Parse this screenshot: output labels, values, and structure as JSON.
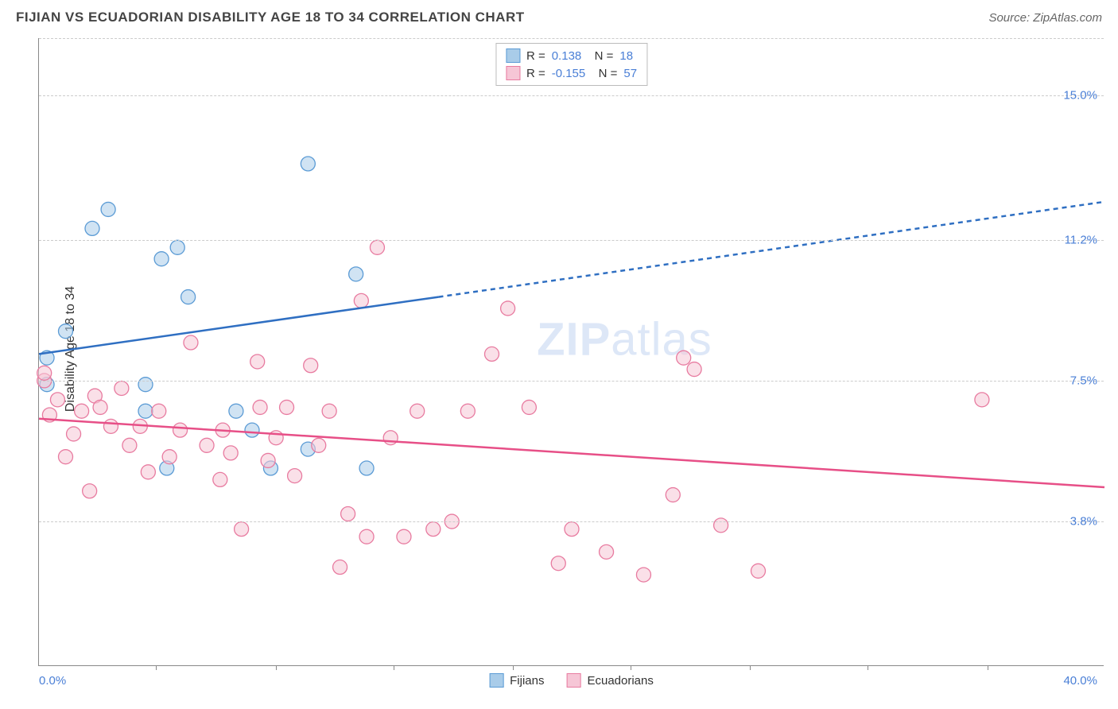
{
  "header": {
    "title": "FIJIAN VS ECUADORIAN DISABILITY AGE 18 TO 34 CORRELATION CHART",
    "source": "Source: ZipAtlas.com"
  },
  "watermark": {
    "bold": "ZIP",
    "rest": "atlas"
  },
  "chart": {
    "type": "scatter",
    "ylabel": "Disability Age 18 to 34",
    "xlim": [
      0,
      40
    ],
    "ylim": [
      0,
      16.5
    ],
    "background_color": "#ffffff",
    "grid_color": "#cccccc",
    "ytick_values": [
      3.8,
      7.5,
      11.2,
      15.0
    ],
    "ytick_labels": [
      "3.8%",
      "7.5%",
      "11.2%",
      "15.0%"
    ],
    "xtick_values": [
      4.4,
      8.9,
      13.3,
      17.8,
      22.2,
      26.7,
      31.1,
      35.6
    ],
    "xmin_label": "0.0%",
    "xmax_label": "40.0%",
    "marker_radius": 9,
    "marker_opacity": 0.55,
    "series": [
      {
        "name": "Fijians",
        "color": "#5b9bd5",
        "fill": "#a9cce9",
        "stroke": "#5b9bd5",
        "r": 0.138,
        "n": 18,
        "trend": {
          "y_at_x0": 8.2,
          "y_at_xmax": 12.2,
          "solid_until_x": 15.0,
          "line_color": "#2f6fc2",
          "line_width": 2.5
        },
        "points": [
          [
            0.3,
            7.4
          ],
          [
            0.3,
            8.1
          ],
          [
            1.0,
            8.8
          ],
          [
            2.0,
            11.5
          ],
          [
            2.6,
            12.0
          ],
          [
            4.0,
            6.7
          ],
          [
            4.0,
            7.4
          ],
          [
            4.6,
            10.7
          ],
          [
            5.2,
            11.0
          ],
          [
            5.6,
            9.7
          ],
          [
            4.8,
            5.2
          ],
          [
            7.4,
            6.7
          ],
          [
            8.7,
            5.2
          ],
          [
            10.1,
            13.2
          ],
          [
            10.1,
            5.7
          ],
          [
            11.9,
            10.3
          ],
          [
            12.3,
            5.2
          ],
          [
            8.0,
            6.2
          ]
        ]
      },
      {
        "name": "Ecuadorians",
        "color": "#e87ba0",
        "fill": "#f6c6d6",
        "stroke": "#e87ba0",
        "r": -0.155,
        "n": 57,
        "trend": {
          "y_at_x0": 6.5,
          "y_at_xmax": 4.7,
          "solid_until_x": 40.0,
          "line_color": "#e74f87",
          "line_width": 2.5
        },
        "points": [
          [
            0.2,
            7.5
          ],
          [
            0.2,
            7.7
          ],
          [
            0.4,
            6.6
          ],
          [
            0.7,
            7.0
          ],
          [
            1.0,
            5.5
          ],
          [
            1.3,
            6.1
          ],
          [
            1.6,
            6.7
          ],
          [
            1.9,
            4.6
          ],
          [
            2.1,
            7.1
          ],
          [
            2.3,
            6.8
          ],
          [
            2.7,
            6.3
          ],
          [
            3.1,
            7.3
          ],
          [
            3.4,
            5.8
          ],
          [
            3.8,
            6.3
          ],
          [
            4.1,
            5.1
          ],
          [
            4.5,
            6.7
          ],
          [
            4.9,
            5.5
          ],
          [
            5.3,
            6.2
          ],
          [
            5.7,
            8.5
          ],
          [
            6.3,
            5.8
          ],
          [
            6.8,
            4.9
          ],
          [
            6.9,
            6.2
          ],
          [
            7.2,
            5.6
          ],
          [
            7.6,
            3.6
          ],
          [
            8.2,
            8.0
          ],
          [
            8.3,
            6.8
          ],
          [
            8.6,
            5.4
          ],
          [
            8.9,
            6.0
          ],
          [
            9.3,
            6.8
          ],
          [
            9.6,
            5.0
          ],
          [
            10.2,
            7.9
          ],
          [
            10.5,
            5.8
          ],
          [
            10.9,
            6.7
          ],
          [
            11.3,
            2.6
          ],
          [
            11.6,
            4.0
          ],
          [
            12.1,
            9.6
          ],
          [
            12.3,
            3.4
          ],
          [
            12.7,
            11.0
          ],
          [
            13.2,
            6.0
          ],
          [
            13.7,
            3.4
          ],
          [
            14.2,
            6.7
          ],
          [
            14.8,
            3.6
          ],
          [
            15.5,
            3.8
          ],
          [
            16.1,
            6.7
          ],
          [
            17.0,
            8.2
          ],
          [
            17.6,
            9.4
          ],
          [
            18.4,
            6.8
          ],
          [
            19.5,
            2.7
          ],
          [
            20.0,
            3.6
          ],
          [
            21.3,
            3.0
          ],
          [
            22.7,
            2.4
          ],
          [
            23.8,
            4.5
          ],
          [
            24.2,
            8.1
          ],
          [
            24.6,
            7.8
          ],
          [
            25.6,
            3.7
          ],
          [
            27.0,
            2.5
          ],
          [
            35.4,
            7.0
          ]
        ]
      }
    ],
    "bottom_legend": [
      "Fijians",
      "Ecuadorians"
    ]
  }
}
